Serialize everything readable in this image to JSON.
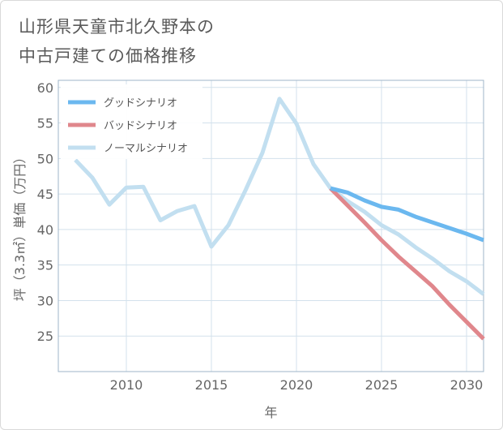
{
  "title": {
    "line1": "山形県天童市北久野本の",
    "line2": "中古戸建ての価格推移"
  },
  "chart_data": {
    "type": "line",
    "xlabel": "年",
    "ylabel": "坪（3.3㎡）単価（万円）",
    "xlim": [
      2006,
      2031
    ],
    "ylim": [
      20,
      61
    ],
    "xticks": [
      2010,
      2015,
      2020,
      2025,
      2030
    ],
    "yticks": [
      25,
      30,
      35,
      40,
      45,
      50,
      55,
      60
    ],
    "grid": true,
    "legend_position": "top-left",
    "series": [
      {
        "name": "グッドシナリオ",
        "color": "#6bb8ef",
        "x": [
          2022,
          2023,
          2024,
          2025,
          2026,
          2027,
          2028,
          2029,
          2030,
          2031
        ],
        "y": [
          45.8,
          45.2,
          44.1,
          43.2,
          42.8,
          41.8,
          41.0,
          40.2,
          39.4,
          38.5
        ]
      },
      {
        "name": "バッドシナリオ",
        "color": "#e0878c",
        "x": [
          2022,
          2023,
          2024,
          2025,
          2026,
          2027,
          2028,
          2029,
          2030,
          2031
        ],
        "y": [
          45.8,
          43.4,
          41.0,
          38.5,
          36.2,
          34.1,
          32.0,
          29.4,
          27.0,
          24.6
        ]
      },
      {
        "name": "ノーマルシナリオ",
        "color": "#c2dff0",
        "x": [
          2007,
          2008,
          2009,
          2010,
          2011,
          2012,
          2013,
          2014,
          2015,
          2016,
          2017,
          2018,
          2019,
          2020,
          2021,
          2022,
          2023,
          2024,
          2025,
          2026,
          2027,
          2028,
          2029,
          2030,
          2031
        ],
        "y": [
          49.8,
          47.3,
          43.5,
          45.9,
          46.0,
          41.3,
          42.6,
          43.3,
          37.6,
          40.6,
          45.5,
          50.8,
          58.4,
          54.9,
          49.2,
          45.8,
          44.0,
          42.5,
          40.6,
          39.3,
          37.5,
          35.9,
          34.1,
          32.7,
          30.9
        ]
      }
    ]
  }
}
